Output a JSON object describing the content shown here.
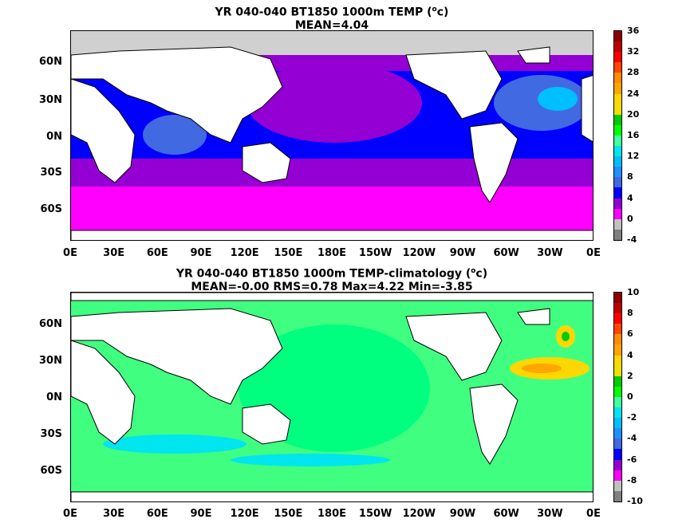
{
  "panels": [
    {
      "title_line1": "YR 040-040 BT1850 1000m TEMP (",
      "title_sup": "o",
      "title_unit": "c)",
      "title_line2": "MEAN=4.04",
      "colorbar_labels": [
        "36",
        "32",
        "28",
        "24",
        "20",
        "16",
        "12",
        "8",
        "4",
        "0",
        "-4"
      ],
      "colorbar_colors": [
        "#8b0000",
        "#c00000",
        "#ff0000",
        "#ff4500",
        "#ff8c00",
        "#ffa500",
        "#ffd700",
        "#f0e000",
        "#00cc00",
        "#00ff00",
        "#40ffa0",
        "#00e5ee",
        "#00bfff",
        "#1e90ff",
        "#4169e1",
        "#0000ff",
        "#9400d3",
        "#ff00ff",
        "#c0c0c0",
        "#808080"
      ]
    },
    {
      "title_line1": "YR 040-040 BT1850 1000m TEMP-climatology (",
      "title_sup": "o",
      "title_unit": "c)",
      "title_line2": "MEAN=-0.00   RMS=0.78   Max=4.22   Min=-3.85",
      "colorbar_labels": [
        "10",
        "8",
        "6",
        "4",
        "2",
        "0",
        "-2",
        "-4",
        "-6",
        "-8",
        "-10"
      ],
      "colorbar_colors": [
        "#8b0000",
        "#c00000",
        "#ff0000",
        "#ff4500",
        "#ff8c00",
        "#ffa500",
        "#ffd700",
        "#f0e000",
        "#00cc00",
        "#00ff00",
        "#40ffa0",
        "#00e5ee",
        "#00bfff",
        "#1e90ff",
        "#4169e1",
        "#0000ff",
        "#9400d3",
        "#ff00ff",
        "#c0c0c0",
        "#808080"
      ]
    }
  ],
  "y_labels": [
    "60N",
    "30N",
    "0N",
    "30S",
    "60S"
  ],
  "x_labels": [
    "0E",
    "30E",
    "60E",
    "90E",
    "120E",
    "150E",
    "180E",
    "150W",
    "120W",
    "90W",
    "60W",
    "30W",
    "0E"
  ]
}
